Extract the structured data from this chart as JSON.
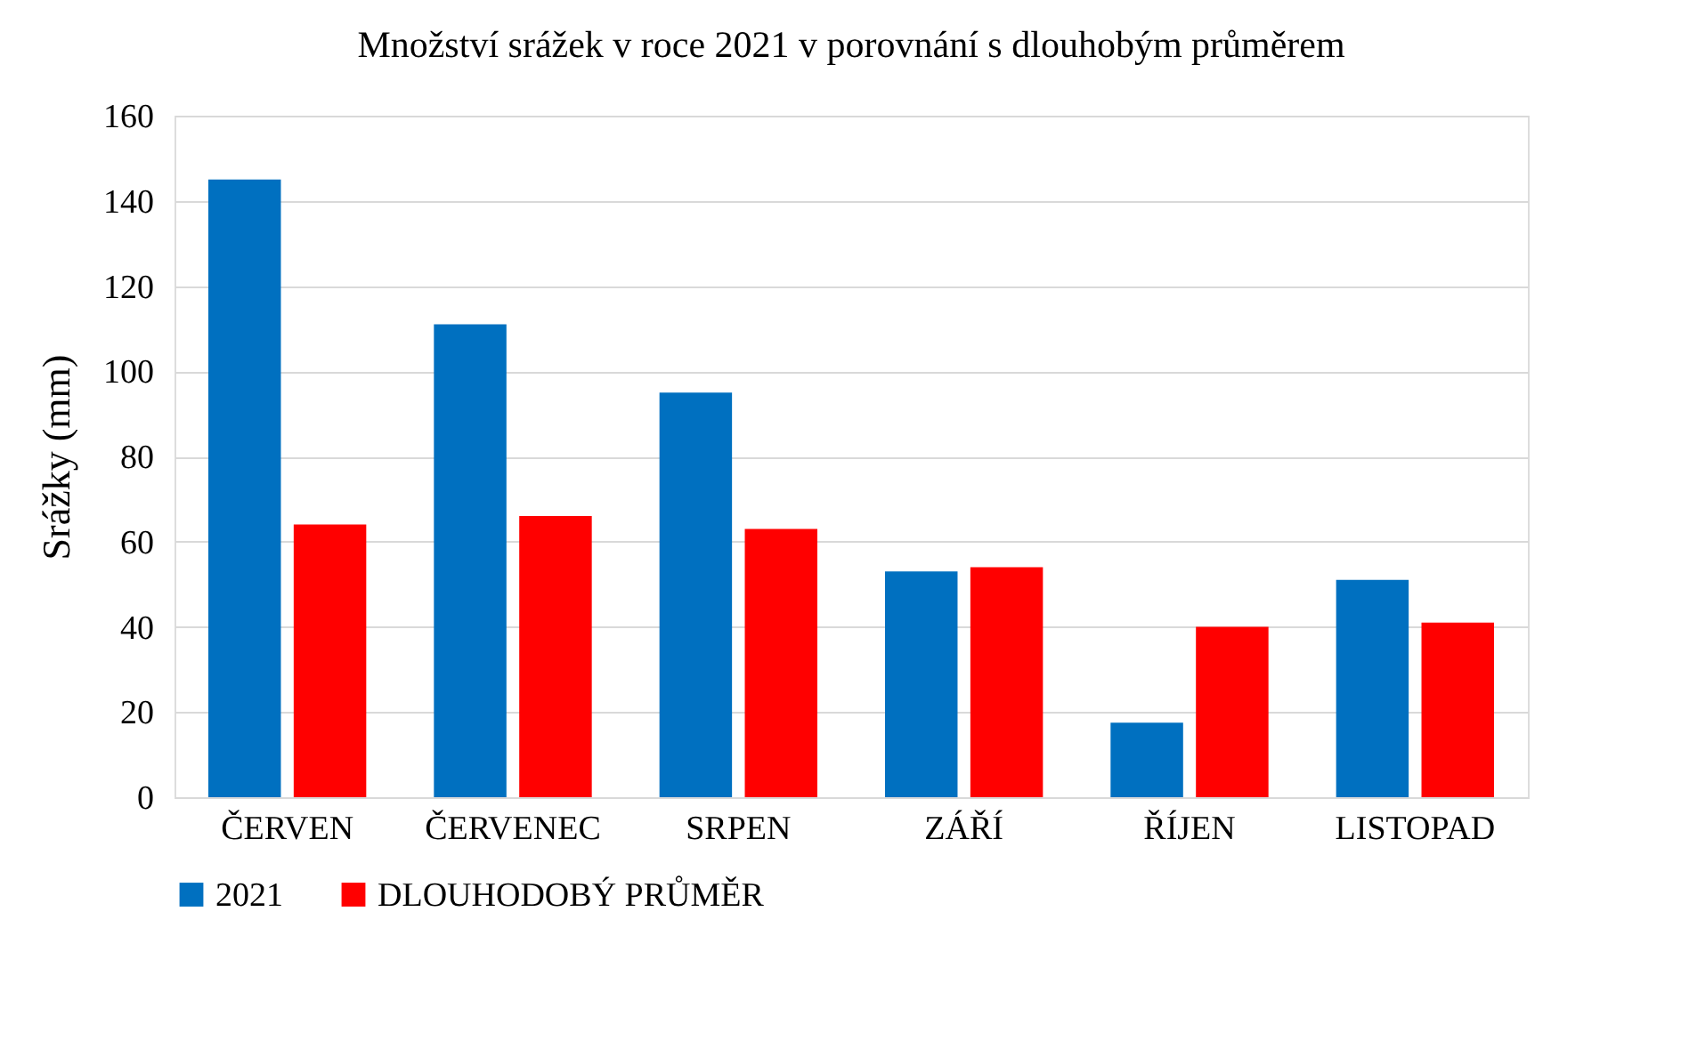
{
  "chart_data": {
    "type": "bar",
    "title": "Množství srážek v roce 2021 v porovnání s dlouhobým průměrem",
    "ylabel": "Srážky (mm)",
    "categories": [
      "ČERVEN",
      "ČERVENEC",
      "SRPEN",
      "ZÁŘÍ",
      "ŘÍJEN",
      "LISTOPAD"
    ],
    "series": [
      {
        "name": "2021",
        "color": "#0070c0",
        "values": [
          145,
          111,
          95,
          53,
          17.5,
          51
        ]
      },
      {
        "name": "DLOUHODOBÝ PRŮMĚR",
        "color": "#ff0000",
        "values": [
          64,
          66,
          63,
          54,
          40,
          41
        ]
      }
    ],
    "ylim": [
      0,
      160
    ],
    "yticks": [
      0,
      20,
      40,
      60,
      80,
      100,
      120,
      140,
      160
    ],
    "grid": "y",
    "legend": "bottom"
  }
}
